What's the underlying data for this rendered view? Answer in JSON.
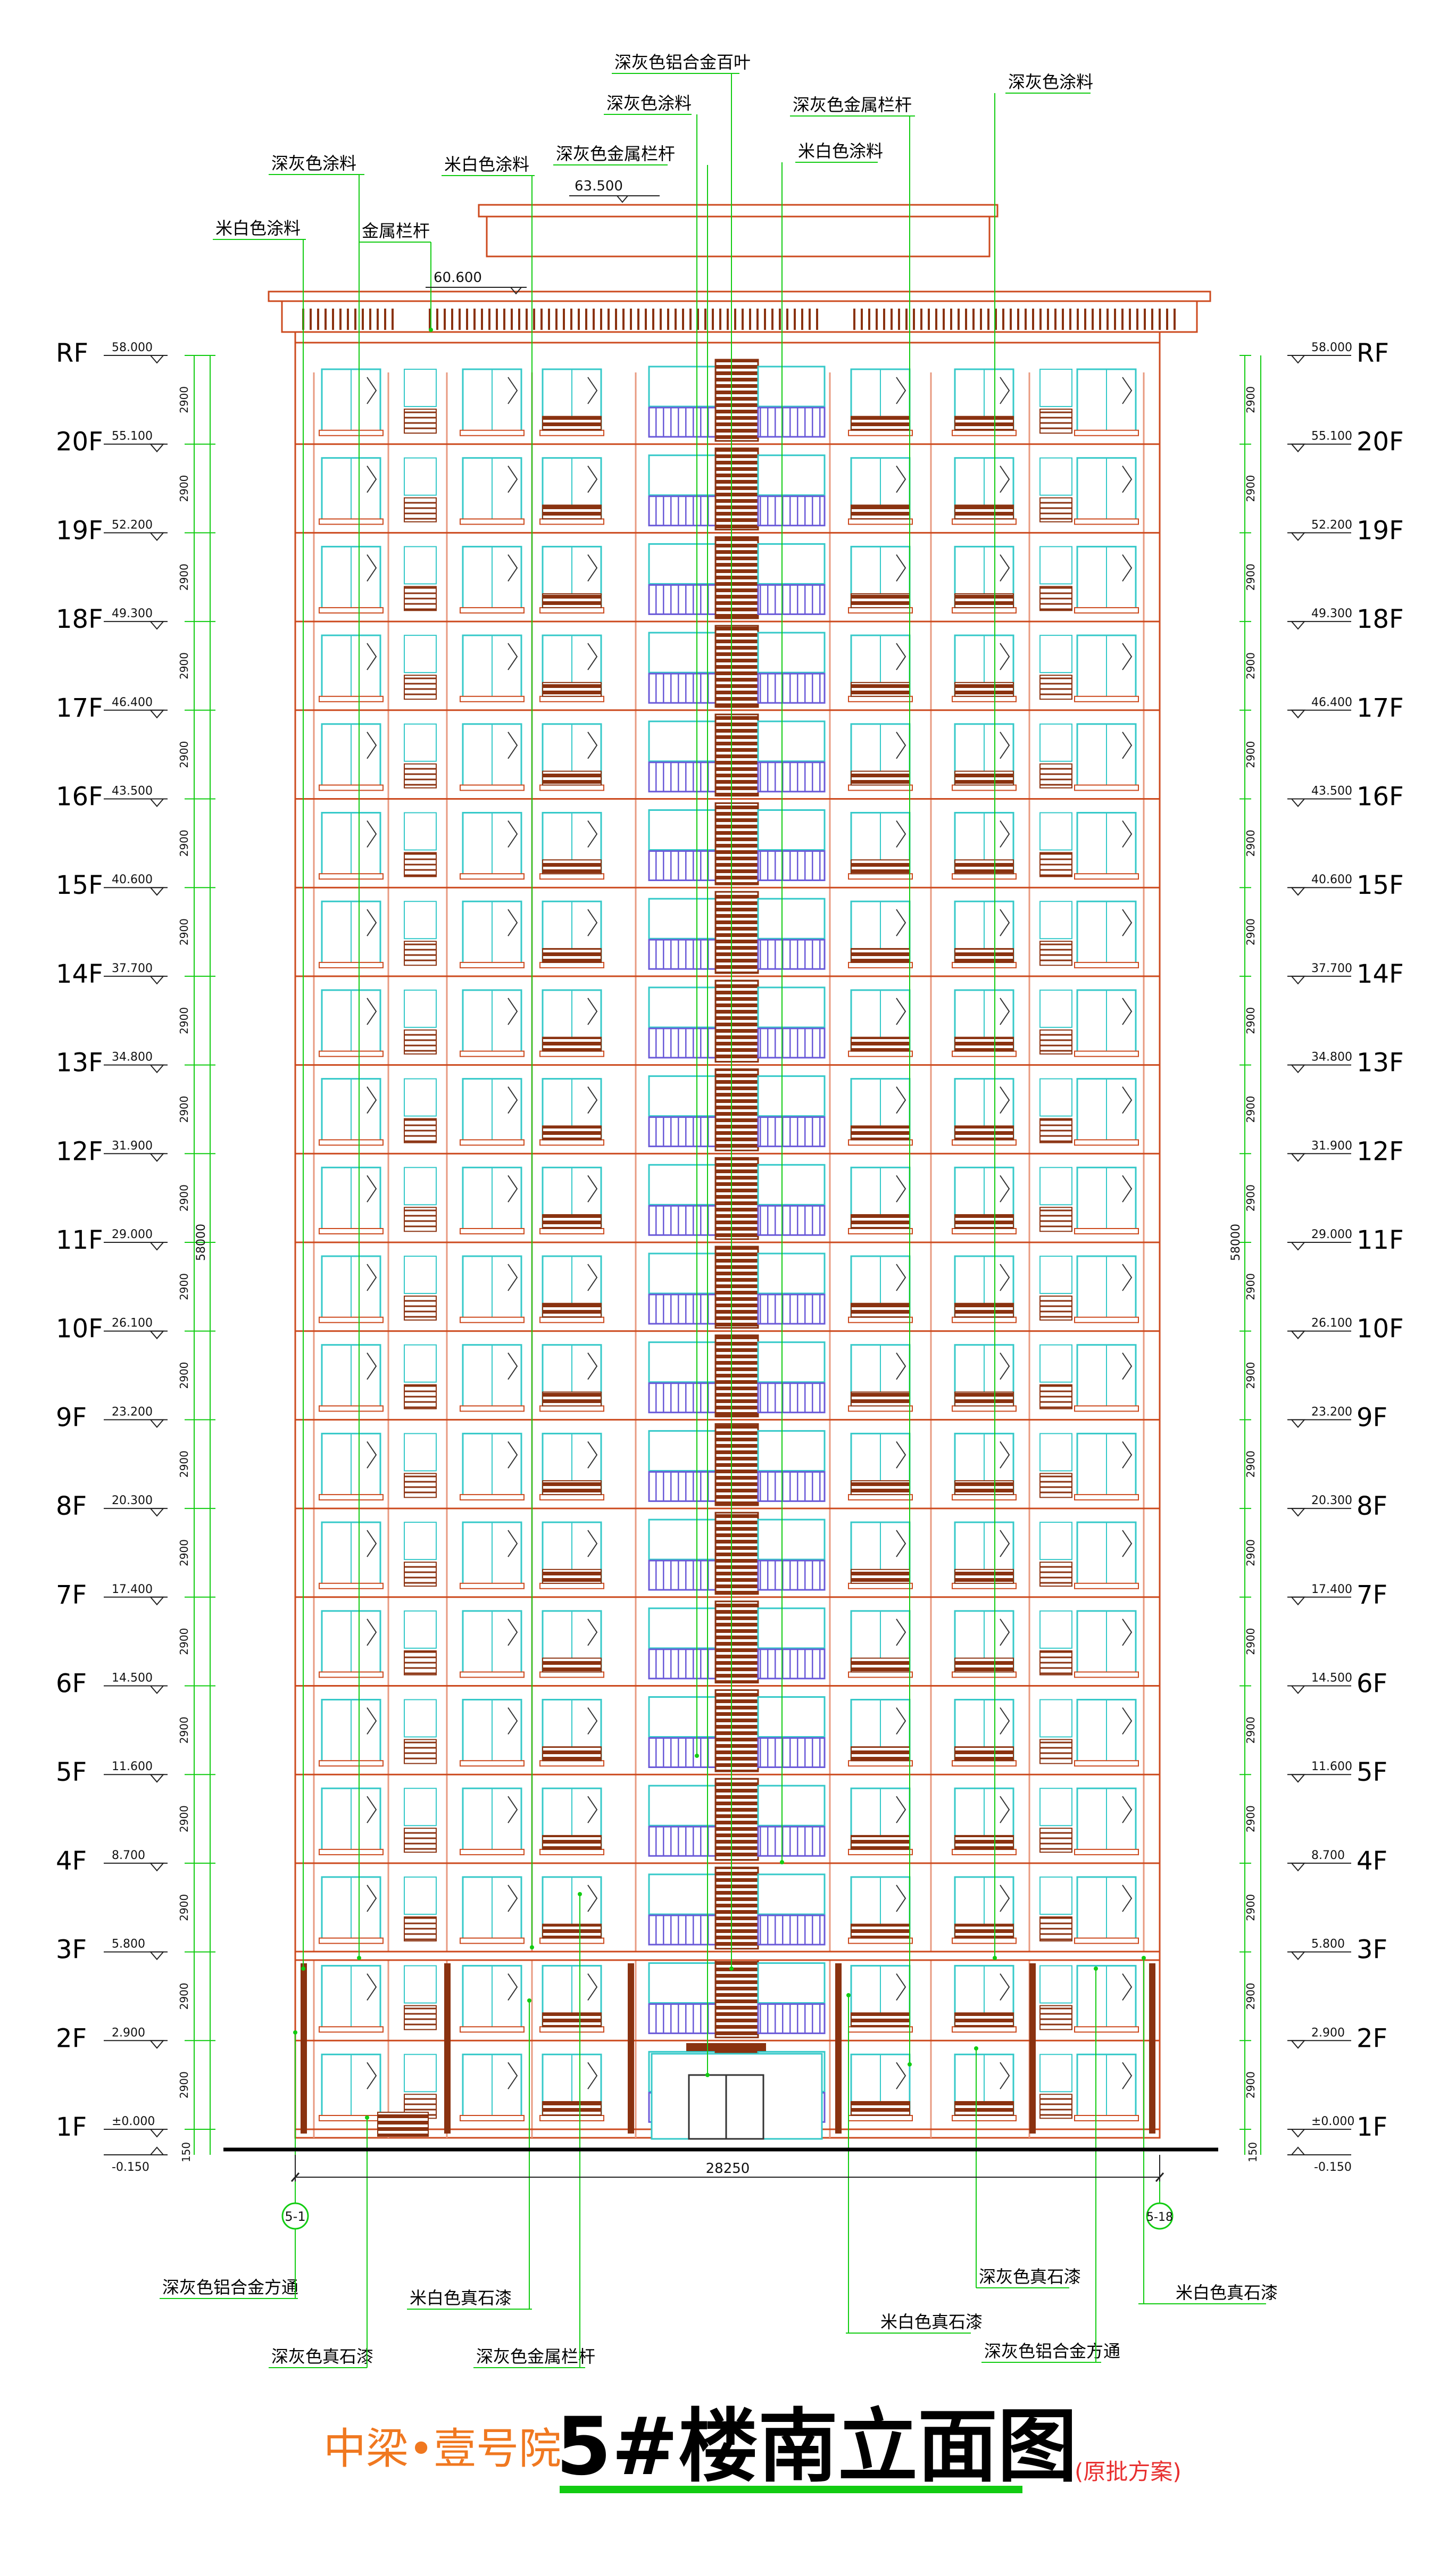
{
  "levels": [
    {
      "label": "RF",
      "elev": "58.000"
    },
    {
      "label": "20F",
      "elev": "55.100"
    },
    {
      "label": "19F",
      "elev": "52.200"
    },
    {
      "label": "18F",
      "elev": "49.300"
    },
    {
      "label": "17F",
      "elev": "46.400"
    },
    {
      "label": "16F",
      "elev": "43.500"
    },
    {
      "label": "15F",
      "elev": "40.600"
    },
    {
      "label": "14F",
      "elev": "37.700"
    },
    {
      "label": "13F",
      "elev": "34.800"
    },
    {
      "label": "12F",
      "elev": "31.900"
    },
    {
      "label": "11F",
      "elev": "29.000"
    },
    {
      "label": "10F",
      "elev": "26.100"
    },
    {
      "label": "9F",
      "elev": "23.200"
    },
    {
      "label": "8F",
      "elev": "20.300"
    },
    {
      "label": "7F",
      "elev": "17.400"
    },
    {
      "label": "6F",
      "elev": "14.500"
    },
    {
      "label": "5F",
      "elev": "11.600"
    },
    {
      "label": "4F",
      "elev": "8.700"
    },
    {
      "label": "3F",
      "elev": "5.800"
    },
    {
      "label": "2F",
      "elev": "2.900"
    },
    {
      "label": "1F",
      "elev": "±0.000"
    }
  ],
  "ground_elev": "-0.150",
  "floor_dim": "2900",
  "total_dim": "58000",
  "base_dim": "150",
  "width_dim": "28250",
  "axis_left": "5-1",
  "axis_right": "5-18",
  "top_elevations": {
    "roof_top": "63.500",
    "parapet": "60.600"
  },
  "callouts_top": [
    "深灰色铝合金百叶",
    "深灰色涂料",
    "深灰色金属栏杆",
    "深灰色涂料",
    "米白色涂料",
    "深灰色金属栏杆",
    "米白色涂料",
    "深灰色涂料",
    "米白色涂料",
    "金属栏杆"
  ],
  "callouts_bottom": [
    "深灰色铝合金方通",
    "深灰色真石漆",
    "米白色真石漆",
    "深灰色金属栏杆",
    "米白色真石漆",
    "深灰色真石漆",
    "深灰色铝合金方通",
    "米白色真石漆"
  ],
  "title": {
    "project": "中梁•壹号院",
    "main": "5#楼南立面图",
    "note": "(原批方案)"
  },
  "colors": {
    "line": "#cc4a1e",
    "dark": "#8a3210",
    "cyan": "#35c9c9",
    "green": "#12cc12",
    "purple": "#6a5ad8",
    "pink": "#e89a80"
  }
}
